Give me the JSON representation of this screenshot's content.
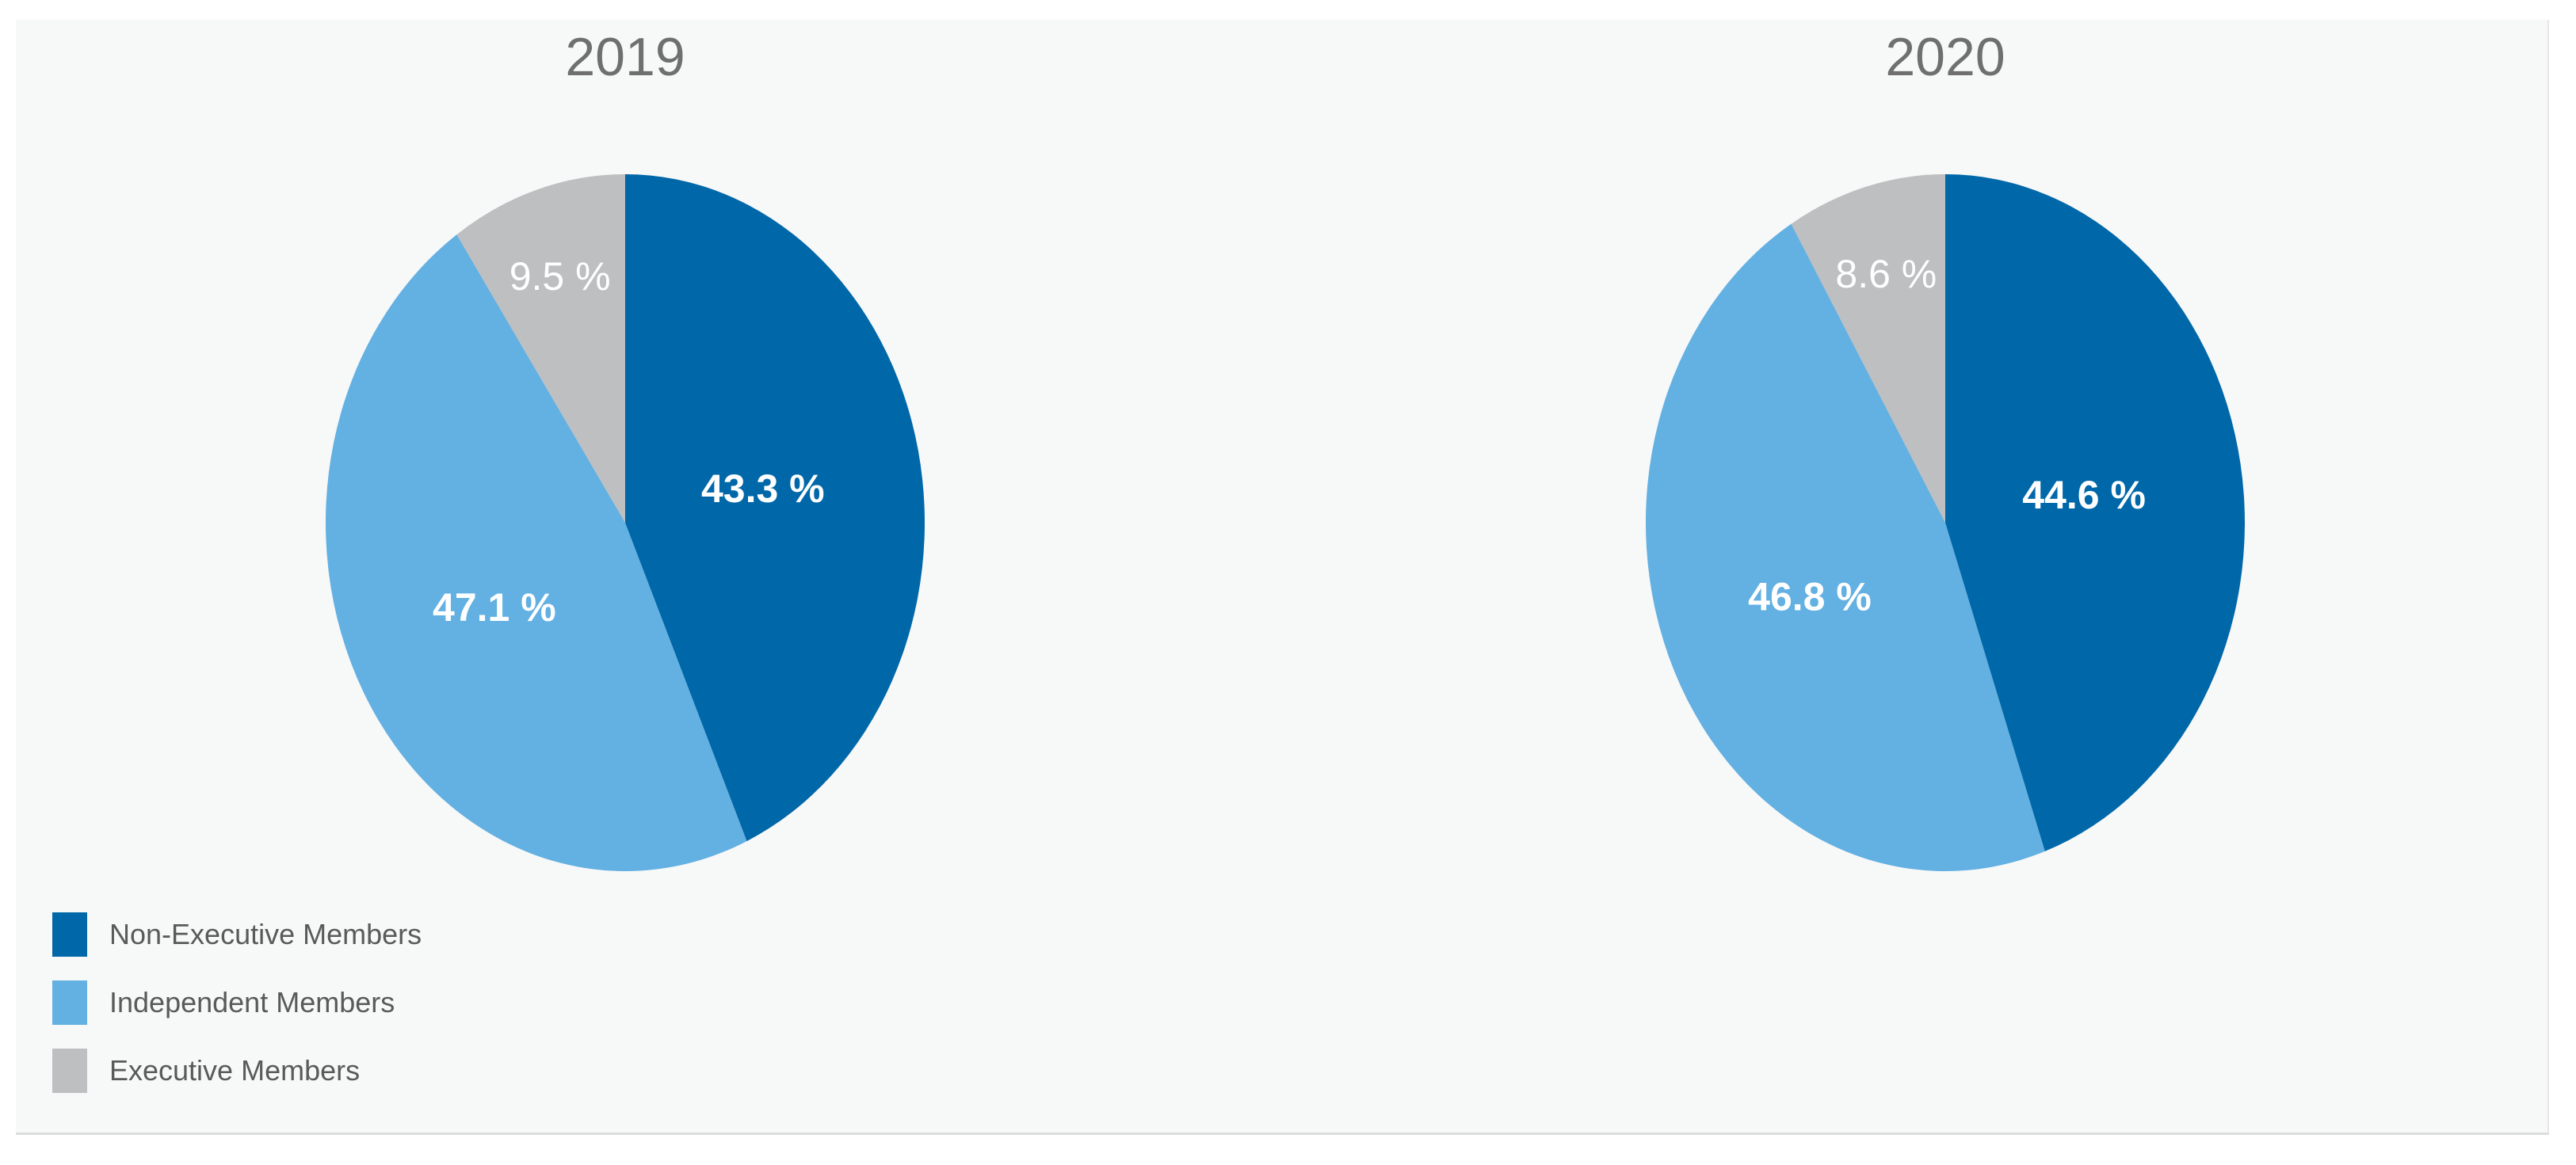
{
  "colors": {
    "non_executive": "#0067a8",
    "independent": "#63b0e2",
    "executive": "#bebfc1",
    "background": "#f7f8f8"
  },
  "legend": [
    {
      "label": "Non-Executive Members",
      "color": "#0067a8"
    },
    {
      "label": "Independent Members",
      "color": "#63b0e2"
    },
    {
      "label": "Executive Members",
      "color": "#bebfc1"
    }
  ],
  "chart_data": [
    {
      "type": "pie",
      "title": "2019",
      "categories": [
        "Non-Executive Members",
        "Independent Members",
        "Executive Members"
      ],
      "values": [
        43.3,
        47.1,
        9.5
      ],
      "labels": [
        "43.3 %",
        "47.1 %",
        "9.5 %"
      ],
      "colors": [
        "#0067a8",
        "#63b0e2",
        "#bebfc1"
      ],
      "start": "12 o'clock",
      "direction": "clockwise"
    },
    {
      "type": "pie",
      "title": "2020",
      "categories": [
        "Non-Executive Members",
        "Independent Members",
        "Executive Members"
      ],
      "values": [
        44.6,
        46.8,
        8.6
      ],
      "labels": [
        "44.6 %",
        "46.8 %",
        "8.6 %"
      ],
      "colors": [
        "#0067a8",
        "#63b0e2",
        "#bebfc1"
      ],
      "start": "12 o'clock",
      "direction": "clockwise"
    }
  ]
}
